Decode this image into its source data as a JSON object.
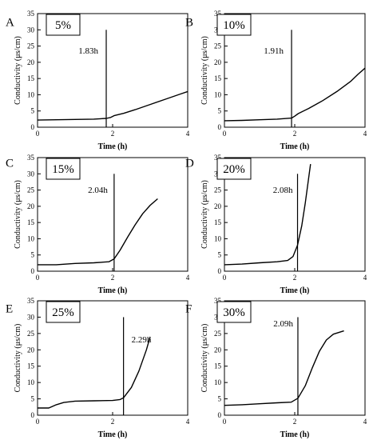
{
  "chart_data": [
    {
      "type": "line",
      "panel": "A",
      "label": "5%",
      "xlabel": "Time (h)",
      "ylabel": "Conductivity (μs/cm)",
      "xlim": [
        0,
        4
      ],
      "ylim": [
        0,
        35
      ],
      "xticks": [
        0,
        2,
        4
      ],
      "yticks": [
        0,
        5,
        10,
        15,
        20,
        25,
        30,
        35
      ],
      "marker": {
        "x": 1.83,
        "label": "1.83h"
      },
      "x": [
        0,
        0.5,
        1,
        1.5,
        1.83,
        1.95,
        2.05,
        2.3,
        2.6,
        3.0,
        3.4,
        3.8,
        4.0
      ],
      "y": [
        2.2,
        2.3,
        2.4,
        2.5,
        2.7,
        3.0,
        3.6,
        4.3,
        5.4,
        7.0,
        8.6,
        10.2,
        11.0
      ]
    },
    {
      "type": "line",
      "panel": "B",
      "label": "10%",
      "xlabel": "Time (h)",
      "ylabel": "Conductivity (μs/cm)",
      "xlim": [
        0,
        4
      ],
      "ylim": [
        0,
        35
      ],
      "xticks": [
        0,
        2,
        4
      ],
      "yticks": [
        0,
        5,
        10,
        15,
        20,
        25,
        30,
        35
      ],
      "marker": {
        "x": 1.91,
        "label": "1.91h"
      },
      "x": [
        0,
        0.5,
        1,
        1.5,
        1.91,
        2.0,
        2.1,
        2.4,
        2.8,
        3.2,
        3.6,
        3.8,
        4.0
      ],
      "y": [
        2.0,
        2.1,
        2.3,
        2.5,
        2.8,
        3.4,
        4.2,
        5.8,
        8.2,
        11.0,
        14.2,
        16.3,
        18.2
      ]
    },
    {
      "type": "line",
      "panel": "C",
      "label": "15%",
      "xlabel": "Time (h)",
      "ylabel": "Conductivity (μs/cm)",
      "xlim": [
        0,
        4
      ],
      "ylim": [
        0,
        35
      ],
      "xticks": [
        0,
        2,
        4
      ],
      "yticks": [
        0,
        5,
        10,
        15,
        20,
        25,
        30,
        35
      ],
      "marker": {
        "x": 2.04,
        "label": "2.04h"
      },
      "x": [
        0,
        0.5,
        1,
        1.5,
        1.9,
        2.04,
        2.2,
        2.4,
        2.6,
        2.8,
        3.0,
        3.2
      ],
      "y": [
        2.0,
        2.0,
        2.4,
        2.6,
        2.9,
        3.8,
        6.5,
        10.5,
        14.3,
        17.7,
        20.3,
        22.3
      ]
    },
    {
      "type": "line",
      "panel": "D",
      "label": "20%",
      "xlabel": "Time (h)",
      "ylabel": "Conductivity (μs/cm)",
      "xlim": [
        0,
        4
      ],
      "ylim": [
        0,
        35
      ],
      "xticks": [
        0,
        2,
        4
      ],
      "yticks": [
        0,
        5,
        10,
        15,
        20,
        25,
        30,
        35
      ],
      "marker": {
        "x": 2.08,
        "label": "2.08h"
      },
      "x": [
        0,
        0.5,
        1,
        1.5,
        1.8,
        1.95,
        2.08,
        2.2,
        2.3,
        2.4,
        2.45
      ],
      "y": [
        2.0,
        2.2,
        2.6,
        2.9,
        3.3,
        4.5,
        8.0,
        14.0,
        21.0,
        29.0,
        33.0
      ]
    },
    {
      "type": "line",
      "panel": "E",
      "label": "25%",
      "xlabel": "Time (h)",
      "ylabel": "Conductivity (μs/cm)",
      "xlim": [
        0,
        4
      ],
      "ylim": [
        0,
        35
      ],
      "xticks": [
        0,
        2,
        4
      ],
      "yticks": [
        0,
        5,
        10,
        15,
        20,
        25,
        30,
        35
      ],
      "marker": {
        "x": 2.29,
        "label": "2.29h"
      },
      "x": [
        0,
        0.3,
        0.5,
        0.7,
        1.0,
        1.5,
        2.0,
        2.2,
        2.29,
        2.5,
        2.7,
        2.9,
        3.0
      ],
      "y": [
        2.2,
        2.2,
        3.2,
        3.9,
        4.3,
        4.4,
        4.5,
        4.8,
        5.3,
        8.5,
        13.5,
        20.0,
        24.0
      ]
    },
    {
      "type": "line",
      "panel": "F",
      "label": "30%",
      "xlabel": "Time (h)",
      "ylabel": "Conductivity (μs/cm)",
      "xlim": [
        0,
        4
      ],
      "ylim": [
        0,
        35
      ],
      "xticks": [
        0,
        2,
        4
      ],
      "yticks": [
        0,
        5,
        10,
        15,
        20,
        25,
        30,
        35
      ],
      "marker": {
        "x": 2.09,
        "label": "2.09h"
      },
      "x": [
        0,
        0.5,
        1,
        1.5,
        1.9,
        2.09,
        2.3,
        2.5,
        2.7,
        2.9,
        3.1,
        3.4
      ],
      "y": [
        3.0,
        3.2,
        3.5,
        3.8,
        4.0,
        5.2,
        9.0,
        14.5,
        19.5,
        23.0,
        24.8,
        25.8
      ]
    }
  ]
}
